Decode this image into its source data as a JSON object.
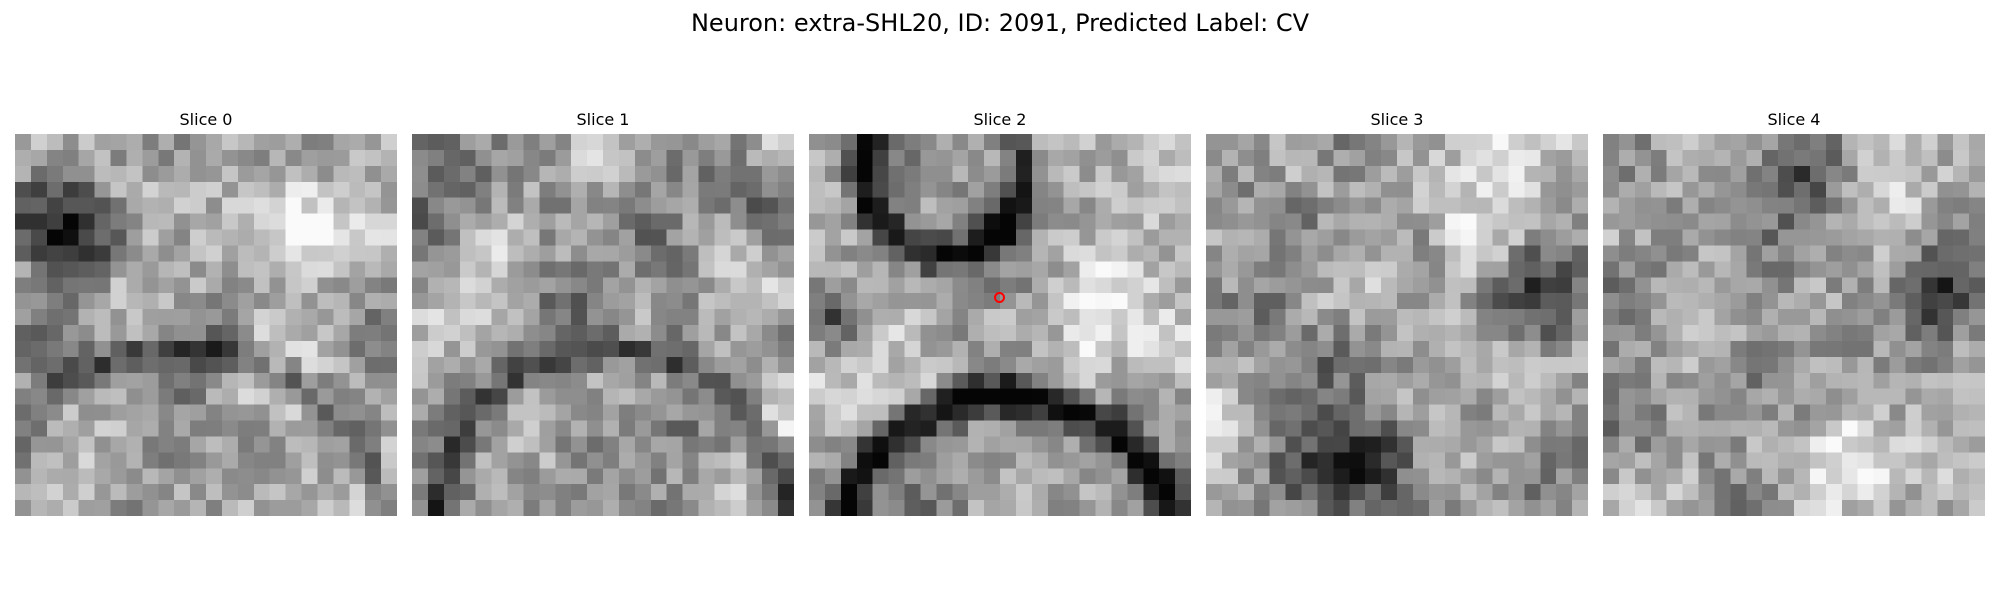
{
  "figure": {
    "title": "Neuron: extra-SHL20, ID: 2091, Predicted Label: CV",
    "colormap": "grayscale",
    "grid_resolution": 24,
    "marker_color": "#ff0000",
    "marker_slice": 2
  },
  "slices": [
    {
      "label": "Slice 0"
    },
    {
      "label": "Slice 1"
    },
    {
      "label": "Slice 2"
    },
    {
      "label": "Slice 3"
    },
    {
      "label": "Slice 4"
    }
  ]
}
